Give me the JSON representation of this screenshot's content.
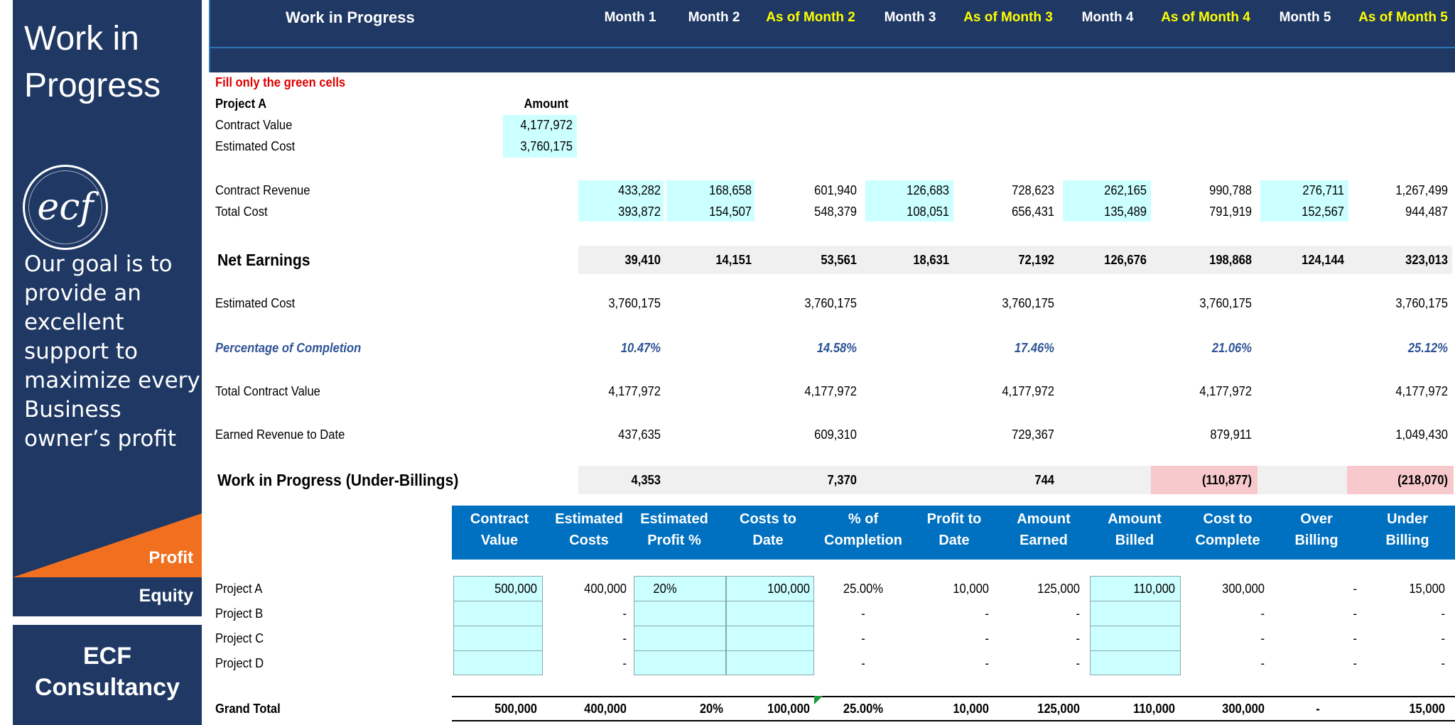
{
  "sidebar": {
    "title_line1": "Work in",
    "title_line2": "Progress",
    "logo_text": "ecf",
    "goal_text": "Our goal is to provide an excellent support to maximize every Business owner’s profit",
    "profit_label": "Profit",
    "equity_label": "Equity",
    "company_line1": "ECF",
    "company_line2": "Consultancy",
    "colors": {
      "navy": "#1f3864",
      "orange": "#f07020"
    }
  },
  "header": {
    "title": "Work in Progress",
    "columns": [
      "Month 1",
      "Month 2",
      "As of Month 2",
      "Month 3",
      "As of Month 3",
      "Month 4",
      "As of Month 4",
      "Month 5",
      "As of Month 5"
    ]
  },
  "inputs": {
    "instruction": "Fill only the green cells",
    "project_label": "Project A",
    "amount_header": "Amount",
    "contract_value_label": "Contract Value",
    "contract_value": "4,177,972",
    "estimated_cost_label": "Estimated Cost",
    "estimated_cost": "3,760,175"
  },
  "rows": {
    "contract_revenue": {
      "label": "Contract Revenue",
      "values": [
        "433,282",
        "168,658",
        "601,940",
        "126,683",
        "728,623",
        "262,165",
        "990,788",
        "276,711",
        "1,267,499"
      ]
    },
    "total_cost": {
      "label": "Total Cost",
      "values": [
        "393,872",
        "154,507",
        "548,379",
        "108,051",
        "656,431",
        "135,489",
        "791,919",
        "152,567",
        "944,487"
      ]
    },
    "net_earnings": {
      "label": "Net Earnings",
      "values": [
        "39,410",
        "14,151",
        "53,561",
        "18,631",
        "72,192",
        "126,676",
        "198,868",
        "124,144",
        "323,013"
      ]
    },
    "estimated_cost": {
      "label": "Estimated Cost",
      "values": [
        "3,760,175",
        "3,760,175",
        "3,760,175",
        "3,760,175",
        "3,760,175"
      ]
    },
    "pct_completion": {
      "label": "Percentage of Completion",
      "values": [
        "10.47%",
        "14.58%",
        "17.46%",
        "21.06%",
        "25.12%"
      ]
    },
    "total_contract_value": {
      "label": "Total Contract Value",
      "values": [
        "4,177,972",
        "4,177,972",
        "4,177,972",
        "4,177,972",
        "4,177,972"
      ]
    },
    "earned_revenue": {
      "label": "Earned Revenue to Date",
      "values": [
        "437,635",
        "609,310",
        "729,367",
        "879,911",
        "1,049,430"
      ]
    },
    "wip": {
      "label": "Work in Progress (Under-Billings)",
      "values": [
        "4,353",
        "7,370",
        "744",
        "(110,877)",
        "(218,070)"
      ]
    }
  },
  "wip_table": {
    "headers": [
      [
        "Contract",
        "Value"
      ],
      [
        "Estimated",
        "Costs"
      ],
      [
        "Estimated",
        "Profit %"
      ],
      [
        "Costs to",
        "Date"
      ],
      [
        "% of",
        "Completion"
      ],
      [
        "Profit to",
        "Date"
      ],
      [
        "Amount",
        "Earned"
      ],
      [
        "Amount",
        "Billed"
      ],
      [
        "Cost to",
        "Complete"
      ],
      [
        "Over",
        "Billing"
      ],
      [
        "Under",
        "Billing"
      ]
    ],
    "projects": [
      {
        "name": "Project A",
        "values": [
          "500,000",
          "400,000",
          "20%",
          "100,000",
          "25.00%",
          "10,000",
          "125,000",
          "110,000",
          "300,000",
          "-",
          "15,000"
        ]
      },
      {
        "name": "Project B",
        "values": [
          "",
          "-",
          "",
          "",
          "-",
          "-",
          "-",
          "",
          "-",
          "-",
          "-"
        ]
      },
      {
        "name": "Project C",
        "values": [
          "",
          "-",
          "",
          "",
          "-",
          "-",
          "-",
          "",
          "-",
          "-",
          "-"
        ]
      },
      {
        "name": "Project D",
        "values": [
          "",
          "-",
          "",
          "",
          "-",
          "-",
          "-",
          "",
          "-",
          "-",
          "-"
        ]
      }
    ],
    "grand_total": {
      "label": "Grand Total",
      "values": [
        "500,000",
        "400,000",
        "20%",
        "100,000",
        "25.00%",
        "10,000",
        "125,000",
        "110,000",
        "300,000",
        "-",
        "15,000"
      ]
    }
  }
}
